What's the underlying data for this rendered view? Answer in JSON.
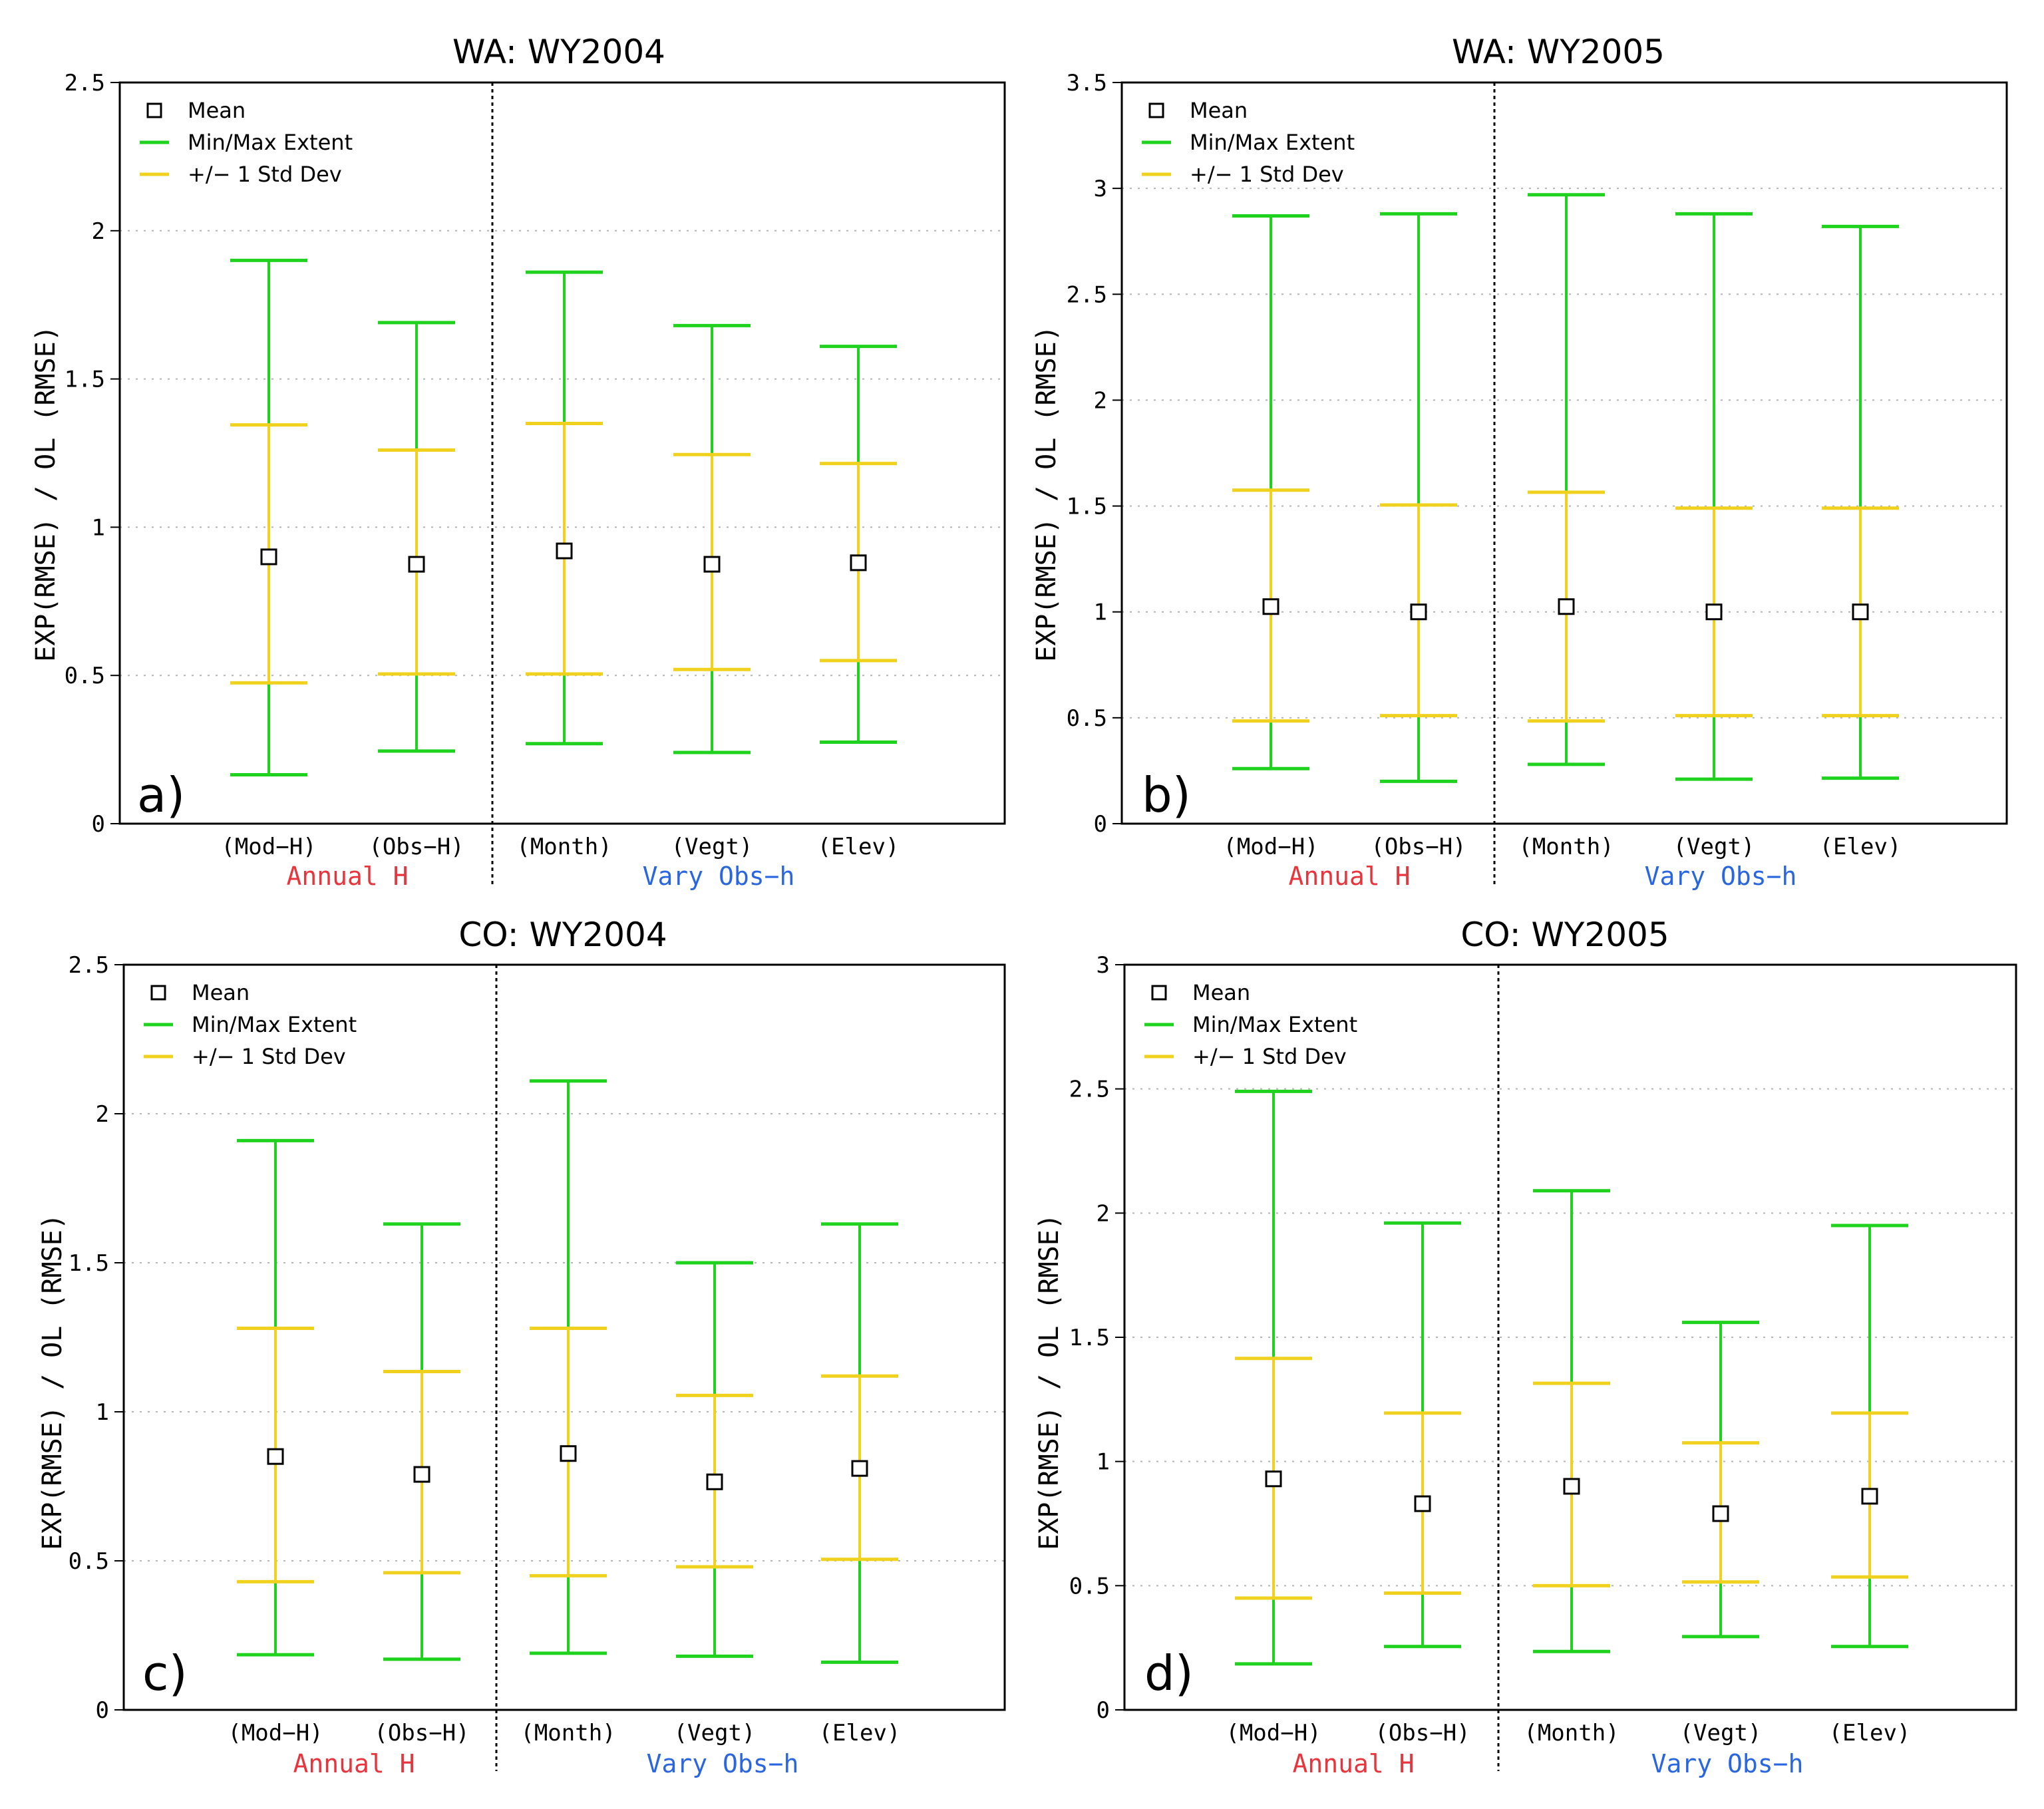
{
  "colors": {
    "minmax": "#1ed21e",
    "std": "#f0d21e",
    "annual": "#e8343c",
    "vary": "#2a66e0",
    "grid": "#b4b4b4"
  },
  "legend": {
    "mean": "Mean",
    "minmax": "Min/Max Extent",
    "std": "+/− 1 Std Dev"
  },
  "ylabel": "EXP(RMSE) / OL (RMSE)",
  "chart_data": [
    {
      "type": "errorbar",
      "panel": "a)",
      "title": "WA: WY2004",
      "ylim": [
        0,
        2.5
      ],
      "yticks": [
        "0",
        "0.5",
        "1",
        "1.5",
        "2",
        "2.5"
      ],
      "categories": [
        "(Mod−H)",
        "(Obs−H)",
        "(Month)",
        "(Vegt)",
        "(Elev)"
      ],
      "groups": [
        "Annual H",
        "Vary Obs−h"
      ],
      "mean": [
        0.9,
        0.875,
        0.92,
        0.875,
        0.88
      ],
      "min": [
        0.165,
        0.245,
        0.27,
        0.24,
        0.275
      ],
      "max": [
        1.9,
        1.69,
        1.86,
        1.68,
        1.61
      ],
      "std_low": [
        0.475,
        0.505,
        0.505,
        0.52,
        0.55
      ],
      "std_high": [
        1.345,
        1.26,
        1.35,
        1.245,
        1.215
      ]
    },
    {
      "type": "errorbar",
      "panel": "b)",
      "title": "WA: WY2005",
      "ylim": [
        0,
        3.5
      ],
      "yticks": [
        "0",
        "0.5",
        "1",
        "1.5",
        "2",
        "2.5",
        "3",
        "3.5"
      ],
      "categories": [
        "(Mod−H)",
        "(Obs−H)",
        "(Month)",
        "(Vegt)",
        "(Elev)"
      ],
      "groups": [
        "Annual H",
        "Vary Obs−h"
      ],
      "mean": [
        1.025,
        1.0,
        1.025,
        1.0,
        1.0
      ],
      "min": [
        0.26,
        0.2,
        0.28,
        0.21,
        0.215
      ],
      "max": [
        2.87,
        2.88,
        2.97,
        2.88,
        2.82
      ],
      "std_low": [
        0.485,
        0.51,
        0.485,
        0.51,
        0.51
      ],
      "std_high": [
        1.575,
        1.505,
        1.565,
        1.49,
        1.49
      ]
    },
    {
      "type": "errorbar",
      "panel": "c)",
      "title": "CO: WY2004",
      "ylim": [
        0,
        2.5
      ],
      "yticks": [
        "0",
        "0.5",
        "1",
        "1.5",
        "2",
        "2.5"
      ],
      "categories": [
        "(Mod−H)",
        "(Obs−H)",
        "(Month)",
        "(Vegt)",
        "(Elev)"
      ],
      "groups": [
        "Annual H",
        "Vary Obs−h"
      ],
      "mean": [
        0.85,
        0.79,
        0.86,
        0.765,
        0.81
      ],
      "min": [
        0.185,
        0.17,
        0.19,
        0.18,
        0.16
      ],
      "max": [
        1.91,
        1.63,
        2.11,
        1.5,
        1.63
      ],
      "std_low": [
        0.43,
        0.46,
        0.45,
        0.48,
        0.505
      ],
      "std_high": [
        1.28,
        1.135,
        1.28,
        1.055,
        1.12
      ]
    },
    {
      "type": "errorbar",
      "panel": "d)",
      "title": "CO: WY2005",
      "ylim": [
        0,
        3
      ],
      "yticks": [
        "0",
        "0.5",
        "1",
        "1.5",
        "2",
        "2.5",
        "3"
      ],
      "categories": [
        "(Mod−H)",
        "(Obs−H)",
        "(Month)",
        "(Vegt)",
        "(Elev)"
      ],
      "groups": [
        "Annual H",
        "Vary Obs−h"
      ],
      "mean": [
        0.93,
        0.83,
        0.9,
        0.79,
        0.86
      ],
      "min": [
        0.185,
        0.255,
        0.235,
        0.295,
        0.255
      ],
      "max": [
        2.49,
        1.96,
        2.09,
        1.56,
        1.95
      ],
      "std_low": [
        0.45,
        0.47,
        0.5,
        0.515,
        0.535
      ],
      "std_high": [
        1.415,
        1.195,
        1.315,
        1.075,
        1.195
      ]
    }
  ]
}
